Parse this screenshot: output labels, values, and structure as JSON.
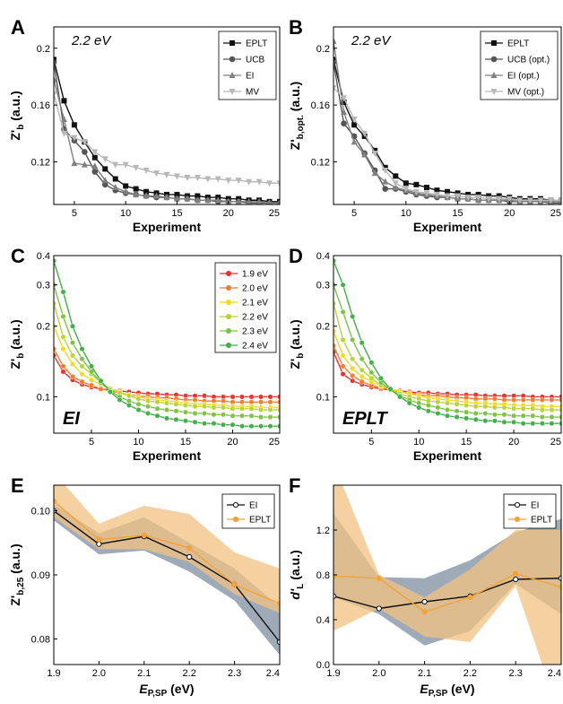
{
  "chart_data": [
    {
      "panel": "A",
      "type": "line",
      "annotation": "2.2 eV",
      "xlabel": "Experiment",
      "ylabel": "Z'b (a.u.)",
      "xlim": [
        3,
        25
      ],
      "ylim": [
        0.09,
        0.215
      ],
      "xticks": [
        5,
        10,
        15,
        20,
        25
      ],
      "yticks": [
        0.12,
        0.16,
        0.2
      ],
      "ytick_labels": [
        "0.12",
        "0.16",
        "0.2"
      ],
      "legend_position": "top-right",
      "x": [
        3,
        4,
        5,
        6,
        7,
        8,
        9,
        10,
        11,
        12,
        13,
        14,
        15,
        16,
        17,
        18,
        19,
        20,
        21,
        22,
        23,
        24,
        25
      ],
      "series": [
        {
          "name": "EPLT",
          "color": "#111111",
          "marker": "square",
          "values": [
            0.192,
            0.163,
            0.146,
            0.134,
            0.123,
            0.115,
            0.108,
            0.103,
            0.101,
            0.099,
            0.098,
            0.097,
            0.097,
            0.096,
            0.096,
            0.095,
            0.095,
            0.094,
            0.094,
            0.093,
            0.093,
            0.092,
            0.092
          ]
        },
        {
          "name": "UCB",
          "color": "#555555",
          "marker": "circle",
          "values": [
            0.19,
            0.143,
            0.135,
            0.127,
            0.113,
            0.104,
            0.1,
            0.098,
            0.097,
            0.096,
            0.095,
            0.095,
            0.094,
            0.094,
            0.093,
            0.093,
            0.092,
            0.092,
            0.092,
            0.091,
            0.091,
            0.091,
            0.091
          ]
        },
        {
          "name": "EI",
          "color": "#808080",
          "marker": "triangle",
          "values": [
            0.178,
            0.15,
            0.119,
            0.118,
            0.117,
            0.107,
            0.102,
            0.099,
            0.097,
            0.096,
            0.096,
            0.095,
            0.094,
            0.094,
            0.093,
            0.093,
            0.093,
            0.092,
            0.092,
            0.092,
            0.092,
            0.091,
            0.091
          ]
        },
        {
          "name": "MV",
          "color": "#b8b8b8",
          "marker": "triangle-down",
          "values": [
            0.168,
            0.14,
            0.137,
            0.134,
            0.127,
            0.122,
            0.118,
            0.118,
            0.116,
            0.114,
            0.112,
            0.111,
            0.11,
            0.109,
            0.109,
            0.108,
            0.108,
            0.107,
            0.107,
            0.106,
            0.106,
            0.105,
            0.105
          ]
        }
      ]
    },
    {
      "panel": "B",
      "type": "line",
      "annotation": "2.2 eV",
      "xlabel": "Experiment",
      "ylabel": "Z'b,opt. (a.u.)",
      "xlim": [
        3,
        25
      ],
      "ylim": [
        0.09,
        0.215
      ],
      "xticks": [
        5,
        10,
        15,
        20,
        25
      ],
      "yticks": [
        0.12,
        0.16,
        0.2
      ],
      "ytick_labels": [
        "0.12",
        "0.16",
        "0.2"
      ],
      "legend_position": "top-right",
      "x": [
        3,
        4,
        5,
        6,
        7,
        8,
        9,
        10,
        11,
        12,
        13,
        14,
        15,
        16,
        17,
        18,
        19,
        20,
        21,
        22,
        23,
        24,
        25
      ],
      "series": [
        {
          "name": "EPLT",
          "color": "#111111",
          "marker": "square",
          "values": [
            0.192,
            0.162,
            0.146,
            0.138,
            0.128,
            0.116,
            0.11,
            0.105,
            0.104,
            0.102,
            0.1,
            0.099,
            0.098,
            0.097,
            0.097,
            0.096,
            0.096,
            0.095,
            0.094,
            0.094,
            0.094,
            0.093,
            0.093
          ]
        },
        {
          "name": "UCB (opt.)",
          "color": "#555555",
          "marker": "circle",
          "values": [
            0.19,
            0.147,
            0.138,
            0.126,
            0.114,
            0.101,
            0.101,
            0.099,
            0.097,
            0.096,
            0.095,
            0.095,
            0.094,
            0.094,
            0.093,
            0.093,
            0.093,
            0.092,
            0.092,
            0.092,
            0.092,
            0.091,
            0.091
          ]
        },
        {
          "name": "EI (opt.)",
          "color": "#808080",
          "marker": "triangle",
          "values": [
            0.205,
            0.155,
            0.134,
            0.125,
            0.112,
            0.106,
            0.102,
            0.1,
            0.098,
            0.097,
            0.096,
            0.095,
            0.094,
            0.094,
            0.093,
            0.093,
            0.093,
            0.093,
            0.092,
            0.092,
            0.092,
            0.092,
            0.092
          ]
        },
        {
          "name": "MV (opt.)",
          "color": "#b8b8b8",
          "marker": "triangle-down",
          "values": [
            0.172,
            0.165,
            0.15,
            0.14,
            0.126,
            0.114,
            0.105,
            0.101,
            0.099,
            0.098,
            0.097,
            0.096,
            0.096,
            0.095,
            0.095,
            0.094,
            0.094,
            0.094,
            0.093,
            0.093,
            0.093,
            0.093,
            0.093
          ]
        }
      ]
    },
    {
      "panel": "C",
      "type": "line",
      "log_y": true,
      "annotation": "EI",
      "xlabel": "Experiment",
      "ylabel": "Z'b (a.u.)",
      "xlim": [
        1,
        25
      ],
      "ylim": [
        0.07,
        0.4
      ],
      "xticks": [
        5,
        10,
        15,
        20,
        25
      ],
      "yticks": [
        0.1,
        0.2,
        0.3,
        0.4
      ],
      "ytick_labels": [
        "0.1",
        "0.2",
        "0.3",
        "0.4"
      ],
      "legend_position": "top-right",
      "x": [
        1,
        2,
        3,
        4,
        5,
        6,
        7,
        8,
        9,
        10,
        11,
        12,
        13,
        14,
        15,
        16,
        17,
        18,
        19,
        20,
        21,
        22,
        23,
        24,
        25
      ],
      "series": [
        {
          "name": "1.9 eV",
          "color": "#e8302b",
          "values": [
            0.15,
            0.128,
            0.118,
            0.113,
            0.11,
            0.108,
            0.107,
            0.106,
            0.105,
            0.104,
            0.103,
            0.103,
            0.102,
            0.102,
            0.101,
            0.101,
            0.101,
            0.1,
            0.1,
            0.1,
            0.1,
            0.1,
            0.1,
            0.1,
            0.1
          ]
        },
        {
          "name": "2.0 eV",
          "color": "#f07b2a",
          "values": [
            0.16,
            0.135,
            0.122,
            0.116,
            0.112,
            0.108,
            0.106,
            0.104,
            0.102,
            0.101,
            0.1,
            0.099,
            0.099,
            0.098,
            0.097,
            0.097,
            0.096,
            0.096,
            0.096,
            0.095,
            0.095,
            0.095,
            0.095,
            0.095,
            0.095
          ]
        },
        {
          "name": "2.1 eV",
          "color": "#f5d81e",
          "values": [
            0.2,
            0.16,
            0.138,
            0.125,
            0.118,
            0.113,
            0.108,
            0.105,
            0.102,
            0.1,
            0.098,
            0.097,
            0.096,
            0.095,
            0.094,
            0.093,
            0.093,
            0.092,
            0.092,
            0.091,
            0.091,
            0.091,
            0.09,
            0.09,
            0.09
          ]
        },
        {
          "name": "2.2 eV",
          "color": "#b8d335",
          "values": [
            0.25,
            0.18,
            0.15,
            0.135,
            0.125,
            0.115,
            0.108,
            0.104,
            0.101,
            0.098,
            0.096,
            0.095,
            0.094,
            0.093,
            0.092,
            0.091,
            0.091,
            0.09,
            0.09,
            0.089,
            0.089,
            0.089,
            0.088,
            0.088,
            0.088
          ]
        },
        {
          "name": "2.3 eV",
          "color": "#7cc242",
          "values": [
            0.3,
            0.22,
            0.17,
            0.145,
            0.128,
            0.115,
            0.106,
            0.1,
            0.096,
            0.093,
            0.091,
            0.089,
            0.088,
            0.087,
            0.086,
            0.085,
            0.085,
            0.084,
            0.084,
            0.083,
            0.083,
            0.083,
            0.082,
            0.082,
            0.082
          ]
        },
        {
          "name": "2.4 eV",
          "color": "#3fae49",
          "values": [
            0.38,
            0.28,
            0.2,
            0.16,
            0.135,
            0.117,
            0.105,
            0.097,
            0.092,
            0.088,
            0.085,
            0.083,
            0.081,
            0.08,
            0.079,
            0.078,
            0.077,
            0.077,
            0.076,
            0.076,
            0.075,
            0.075,
            0.075,
            0.075,
            0.075
          ]
        }
      ]
    },
    {
      "panel": "D",
      "type": "line",
      "log_y": true,
      "annotation": "EPLT",
      "xlabel": "Experiment",
      "ylabel": "Z'b (a.u.)",
      "xlim": [
        1,
        25
      ],
      "ylim": [
        0.07,
        0.4
      ],
      "xticks": [
        5,
        10,
        15,
        20,
        25
      ],
      "yticks": [
        0.1,
        0.2,
        0.3,
        0.4
      ],
      "ytick_labels": [
        "0.1",
        "0.2",
        "0.3",
        "0.4"
      ],
      "x": [
        1,
        2,
        3,
        4,
        5,
        6,
        7,
        8,
        9,
        10,
        11,
        12,
        13,
        14,
        15,
        16,
        17,
        18,
        19,
        20,
        21,
        22,
        23,
        24,
        25
      ],
      "series": [
        {
          "name": "1.9 eV",
          "color": "#e8302b",
          "values": [
            0.155,
            0.125,
            0.117,
            0.113,
            0.11,
            0.108,
            0.107,
            0.106,
            0.105,
            0.104,
            0.104,
            0.103,
            0.103,
            0.102,
            0.102,
            0.102,
            0.101,
            0.101,
            0.101,
            0.101,
            0.101,
            0.1,
            0.1,
            0.1,
            0.1
          ]
        },
        {
          "name": "2.0 eV",
          "color": "#f07b2a",
          "values": [
            0.165,
            0.135,
            0.123,
            0.116,
            0.112,
            0.109,
            0.107,
            0.105,
            0.104,
            0.102,
            0.101,
            0.101,
            0.1,
            0.099,
            0.099,
            0.098,
            0.098,
            0.098,
            0.097,
            0.097,
            0.097,
            0.097,
            0.097,
            0.097,
            0.097
          ]
        },
        {
          "name": "2.1 eV",
          "color": "#f5d81e",
          "values": [
            0.19,
            0.15,
            0.132,
            0.122,
            0.116,
            0.111,
            0.108,
            0.105,
            0.103,
            0.101,
            0.099,
            0.098,
            0.097,
            0.096,
            0.095,
            0.094,
            0.094,
            0.093,
            0.093,
            0.092,
            0.092,
            0.092,
            0.091,
            0.091,
            0.091
          ]
        },
        {
          "name": "2.2 eV",
          "color": "#b8d335",
          "values": [
            0.25,
            0.175,
            0.145,
            0.13,
            0.12,
            0.112,
            0.107,
            0.103,
            0.1,
            0.098,
            0.096,
            0.095,
            0.094,
            0.093,
            0.092,
            0.091,
            0.091,
            0.09,
            0.09,
            0.089,
            0.089,
            0.089,
            0.088,
            0.088,
            0.088
          ]
        },
        {
          "name": "2.3 eV",
          "color": "#7cc242",
          "values": [
            0.3,
            0.23,
            0.175,
            0.145,
            0.127,
            0.115,
            0.107,
            0.101,
            0.097,
            0.094,
            0.092,
            0.09,
            0.088,
            0.087,
            0.086,
            0.085,
            0.085,
            0.084,
            0.084,
            0.083,
            0.083,
            0.083,
            0.082,
            0.082,
            0.082
          ]
        },
        {
          "name": "2.4 eV",
          "color": "#3fae49",
          "values": [
            0.38,
            0.3,
            0.22,
            0.17,
            0.14,
            0.12,
            0.108,
            0.1,
            0.094,
            0.09,
            0.087,
            0.085,
            0.083,
            0.082,
            0.081,
            0.08,
            0.079,
            0.079,
            0.078,
            0.078,
            0.077,
            0.077,
            0.077,
            0.077,
            0.077
          ]
        }
      ]
    },
    {
      "panel": "E",
      "type": "line",
      "xlabel": "EP,SP (eV)",
      "ylabel": "Z'b,25 (a.u.)",
      "xlim": [
        1.9,
        2.4
      ],
      "ylim": [
        0.076,
        0.104
      ],
      "xticks": [
        1.9,
        2.0,
        2.1,
        2.2,
        2.3,
        2.4
      ],
      "xtick_labels": [
        "1.9",
        "2.0",
        "2.1",
        "2.2",
        "2.3",
        "2.4"
      ],
      "yticks": [
        0.08,
        0.09,
        0.1
      ],
      "ytick_labels": [
        "0.08",
        "0.09",
        "0.10"
      ],
      "legend_position": "top-right",
      "x": [
        1.9,
        2.0,
        2.1,
        2.2,
        2.3,
        2.4
      ],
      "series": [
        {
          "name": "EI",
          "color": "#111111",
          "band_color": "#7f8da0",
          "values": [
            0.1,
            0.0948,
            0.096,
            0.0928,
            0.0885,
            0.0795
          ],
          "lower": [
            0.0985,
            0.0932,
            0.0938,
            0.0905,
            0.086,
            0.0775
          ],
          "upper": [
            0.101,
            0.0965,
            0.099,
            0.095,
            0.091,
            0.085
          ]
        },
        {
          "name": "EPLT",
          "color": "#f2a33a",
          "band_color": "#f2c283",
          "values": [
            0.1015,
            0.0955,
            0.0962,
            0.0942,
            0.0885,
            0.0855
          ],
          "lower": [
            0.099,
            0.094,
            0.094,
            0.092,
            0.087,
            0.084
          ],
          "upper": [
            0.106,
            0.098,
            0.1008,
            0.0995,
            0.0935,
            0.091
          ]
        }
      ]
    },
    {
      "panel": "F",
      "type": "line",
      "xlabel": "EP,SP (eV)",
      "ylabel": "d'L (a.u.)",
      "xlim": [
        1.9,
        2.4
      ],
      "ylim": [
        0,
        1.6
      ],
      "xticks": [
        1.9,
        2.0,
        2.1,
        2.2,
        2.3,
        2.4
      ],
      "xtick_labels": [
        "1.9",
        "2.0",
        "2.1",
        "2.2",
        "2.3",
        "2.4"
      ],
      "yticks": [
        0,
        0.4,
        0.8,
        1.2
      ],
      "ytick_labels": [
        "0.0",
        "0.4",
        "0.8",
        "1.2"
      ],
      "legend_position": "top-right",
      "x": [
        1.9,
        2.0,
        2.1,
        2.2,
        2.3,
        2.4
      ],
      "series": [
        {
          "name": "EI",
          "color": "#111111",
          "band_color": "#7f8da0",
          "values": [
            0.61,
            0.5,
            0.56,
            0.61,
            0.76,
            0.77
          ],
          "lower": [
            0.6,
            0.45,
            0.17,
            0.3,
            0.72,
            0.45
          ],
          "upper": [
            1.35,
            0.78,
            0.77,
            0.93,
            1.18,
            1.3
          ]
        },
        {
          "name": "EPLT",
          "color": "#f2a33a",
          "band_color": "#f2c283",
          "values": [
            0.79,
            0.77,
            0.47,
            0.6,
            0.81,
            0.69
          ],
          "lower": [
            0.3,
            0.5,
            0.25,
            0.2,
            0.7,
            -0.5
          ],
          "upper": [
            1.8,
            0.8,
            0.6,
            0.85,
            1.2,
            1.2
          ]
        }
      ]
    }
  ]
}
